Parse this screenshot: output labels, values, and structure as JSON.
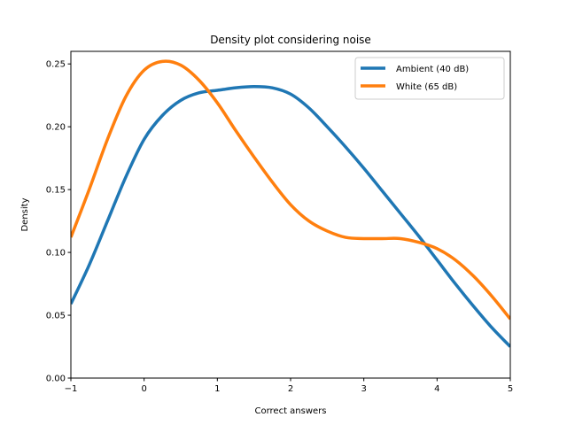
{
  "chart_data": {
    "type": "line",
    "title": "Density plot considering noise",
    "xlabel": "Correct answers",
    "ylabel": "Density",
    "xlim": [
      -1,
      5
    ],
    "ylim": [
      0,
      0.26
    ],
    "x_ticks": [
      -1,
      0,
      1,
      2,
      3,
      4,
      5
    ],
    "x_tick_labels": [
      "−1",
      "0",
      "1",
      "2",
      "3",
      "4",
      "5"
    ],
    "y_ticks": [
      0.0,
      0.05,
      0.1,
      0.15,
      0.2,
      0.25
    ],
    "y_tick_labels": [
      "0.00",
      "0.05",
      "0.10",
      "0.15",
      "0.20",
      "0.25"
    ],
    "grid": false,
    "legend_position": "top-right",
    "series": [
      {
        "name": "Ambient (40 dB)",
        "color": "#1f77b4",
        "x": [
          -1,
          -0.75,
          -0.5,
          -0.25,
          0,
          0.25,
          0.5,
          0.75,
          1,
          1.25,
          1.5,
          1.75,
          2,
          2.25,
          2.5,
          2.75,
          3,
          3.25,
          3.5,
          3.75,
          4,
          4.25,
          4.5,
          4.75,
          5
        ],
        "y": [
          0.059,
          0.09,
          0.125,
          0.16,
          0.19,
          0.209,
          0.221,
          0.227,
          0.229,
          0.231,
          0.232,
          0.231,
          0.226,
          0.215,
          0.2,
          0.184,
          0.167,
          0.149,
          0.131,
          0.113,
          0.094,
          0.075,
          0.057,
          0.04,
          0.025
        ]
      },
      {
        "name": "White (65 dB)",
        "color": "#ff7f0e",
        "x": [
          -1,
          -0.75,
          -0.5,
          -0.25,
          0,
          0.25,
          0.5,
          0.75,
          1,
          1.25,
          1.5,
          1.75,
          2,
          2.25,
          2.5,
          2.75,
          3,
          3.25,
          3.5,
          3.75,
          4,
          4.25,
          4.5,
          4.75,
          5
        ],
        "y": [
          0.112,
          0.15,
          0.19,
          0.224,
          0.245,
          0.252,
          0.249,
          0.237,
          0.219,
          0.197,
          0.176,
          0.156,
          0.138,
          0.125,
          0.117,
          0.112,
          0.111,
          0.111,
          0.111,
          0.108,
          0.103,
          0.094,
          0.081,
          0.065,
          0.047
        ]
      }
    ]
  }
}
